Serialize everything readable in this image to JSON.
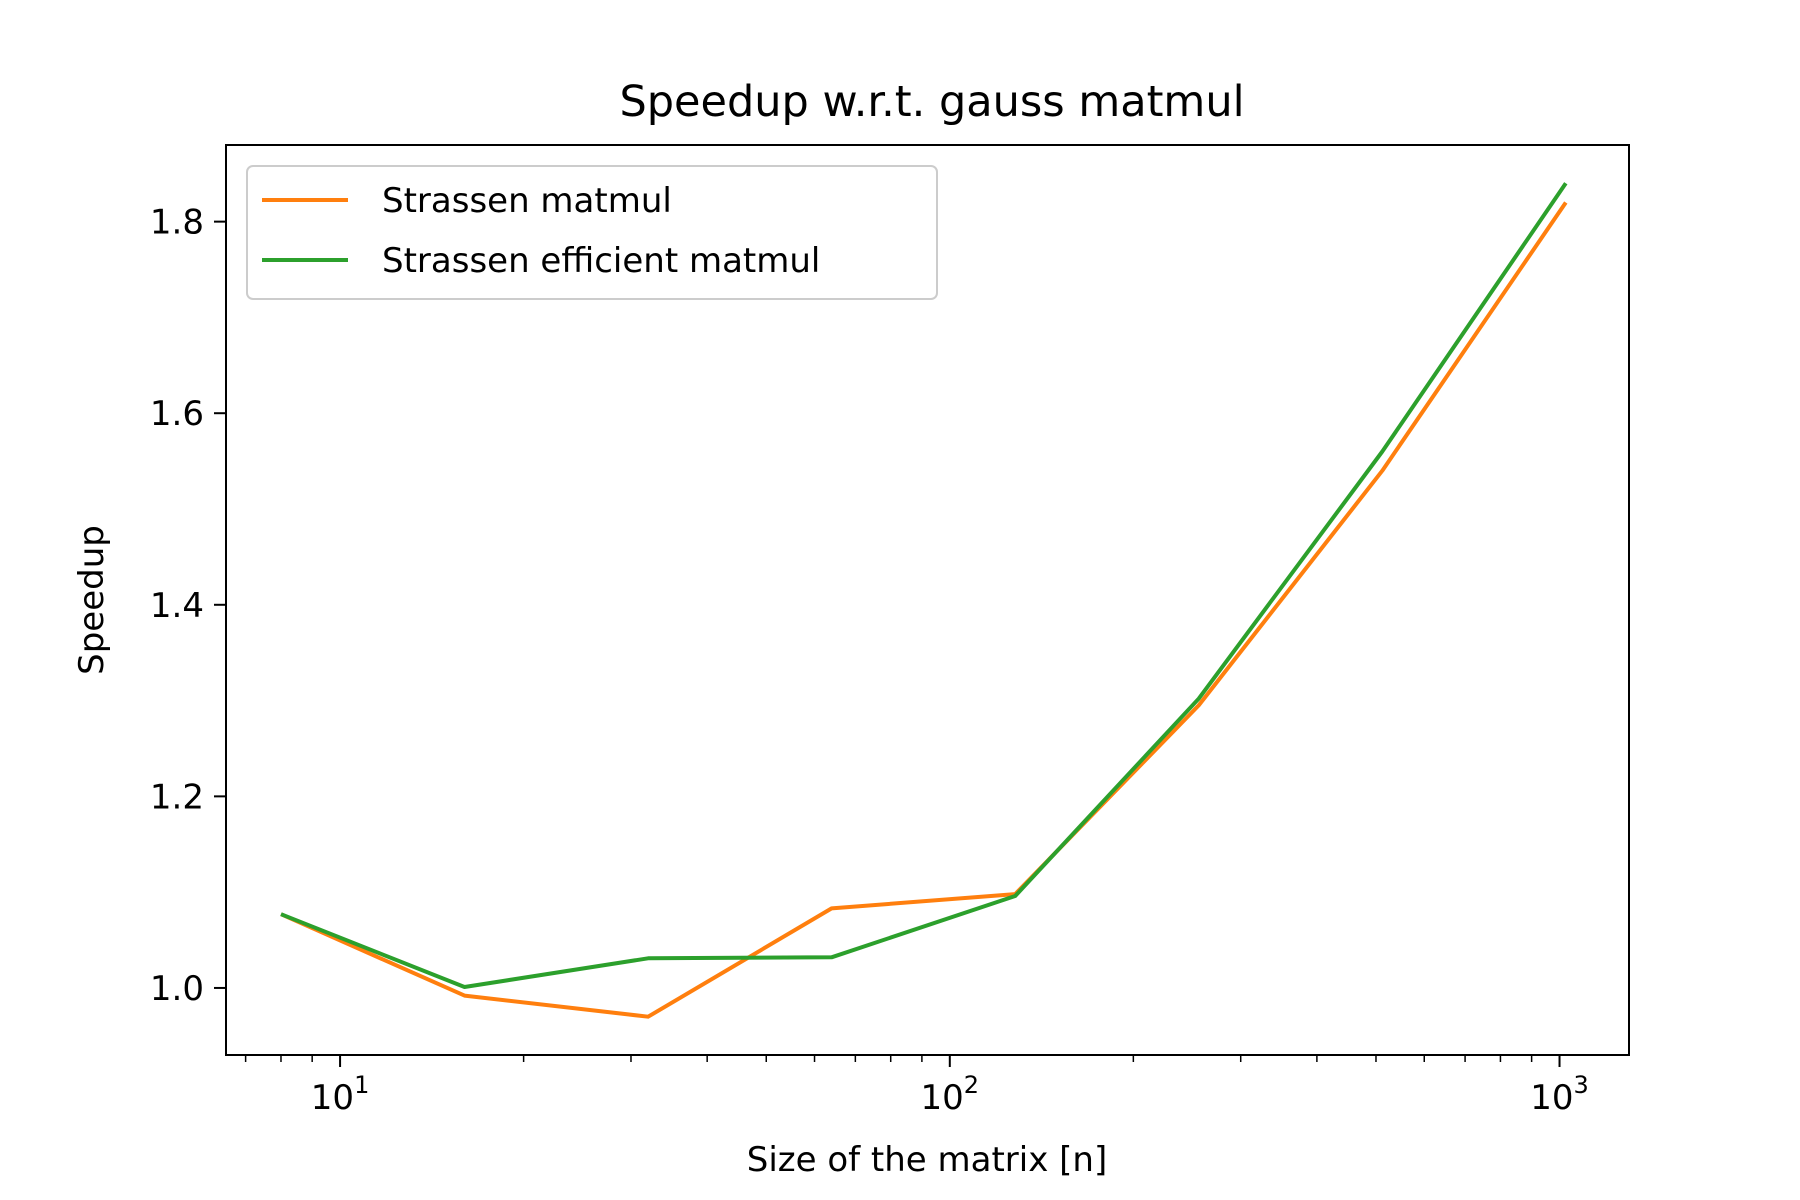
{
  "chart_data": {
    "type": "line",
    "title": "Speedup w.r.t. gauss matmul",
    "xlabel": "Size of the matrix [n]",
    "ylabel": "Speedup",
    "xscale": "log",
    "xlim": [
      6.5,
      1300
    ],
    "ylim": [
      0.93,
      1.88
    ],
    "grid": false,
    "legend_position": "top-left",
    "x": [
      8,
      16,
      32,
      64,
      128,
      256,
      512,
      1024
    ],
    "x_ticks": [
      {
        "value": 10,
        "base": "10",
        "exp": "1"
      },
      {
        "value": 100,
        "base": "10",
        "exp": "2"
      },
      {
        "value": 1000,
        "base": "10",
        "exp": "3"
      }
    ],
    "y_ticks": [
      {
        "value": 1.0,
        "label": "1.0"
      },
      {
        "value": 1.2,
        "label": "1.2"
      },
      {
        "value": 1.4,
        "label": "1.4"
      },
      {
        "value": 1.6,
        "label": "1.6"
      },
      {
        "value": 1.8,
        "label": "1.8"
      }
    ],
    "series": [
      {
        "name": "Strassen matmul",
        "color": "#ff7f0e",
        "values": [
          1.077,
          0.992,
          0.97,
          1.083,
          1.098,
          1.295,
          1.54,
          1.82
        ]
      },
      {
        "name": "Strassen efficient matmul",
        "color": "#2ca02c",
        "values": [
          1.077,
          1.001,
          1.031,
          1.032,
          1.096,
          1.302,
          1.56,
          1.84
        ]
      }
    ]
  }
}
